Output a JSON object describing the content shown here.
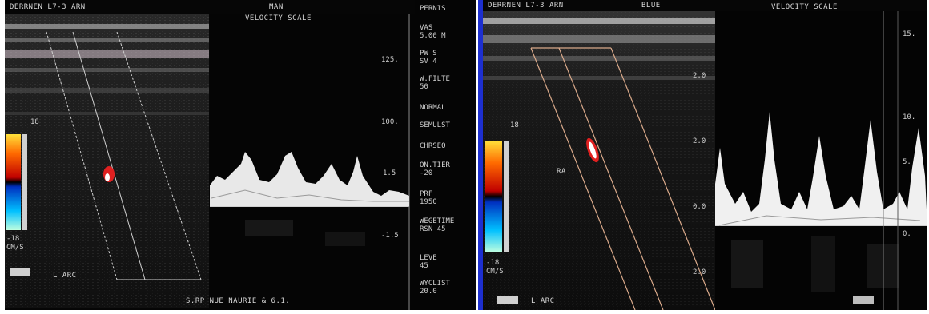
{
  "left_image": {
    "header_left": "DERRNEN L7-3 ARN",
    "header_right": "MAN",
    "doppler_header": "VELOCITY SCALE",
    "doppler_ticks": [
      "125.",
      "100.",
      "1.5",
      "-1.5"
    ],
    "colorbar_top": "18",
    "colorbar_bottom": "-18",
    "colorbar_unit": "CM/S",
    "vessel_label": "L ARC",
    "footer": "S.RP NUE NAURIE & 6.1."
  },
  "parameter_strip": {
    "items": [
      "PERNIS",
      "VAS\n5.00 M",
      "PW S\nSV 4",
      "W.FILTE\n50",
      "NORMAL",
      "SEMULST",
      "CHRSEO",
      "ON.TIER\n-20",
      "PRF\n1950",
      "WEGETIME\nRSN 45",
      "LEVE\n45",
      "WYCLIST\n20.0"
    ]
  },
  "right_image": {
    "header_left": "DERRNEN L7-3 ARN",
    "header_right": "BLUE",
    "doppler_header": "VELOCITY SCALE",
    "doppler_ticks": [
      "15.",
      "10.",
      "5.",
      "0."
    ],
    "mid_ticks": [
      "2.0",
      "2.0",
      "0.0",
      "2.0"
    ],
    "colorbar_top": "18",
    "colorbar_bottom": "-18",
    "colorbar_unit": "CM/S",
    "vessel_label": "L ARC",
    "vessel_tag": "RA"
  },
  "colors": {
    "background": "#060606",
    "divider": "#1d2fd0",
    "text": "#d9d9d9"
  }
}
